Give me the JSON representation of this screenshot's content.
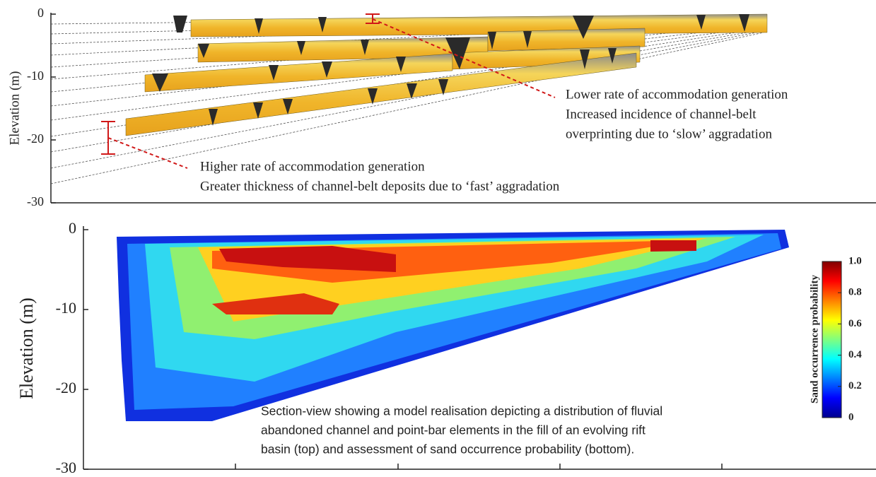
{
  "chart_data": [
    {
      "type": "section",
      "ylabel": "Elevation (m)",
      "ylim": [
        -30,
        0
      ],
      "yticks": [
        0,
        -10,
        -20,
        -30
      ],
      "annotations": [
        "Lower rate of accommodation generation",
        "Increased incidence of channel-belt",
        "overprinting due to ‘slow’ aggradation",
        "Higher rate of accommodation generation",
        "Greater thickness of channel-belt deposits due to ‘fast’ aggradation"
      ]
    },
    {
      "type": "heatmap",
      "ylabel": "Elevation (m)",
      "ylim": [
        -30,
        0
      ],
      "yticks": [
        0,
        -10,
        -20,
        -30
      ],
      "colorbar": {
        "label": "Sand occurrence probability",
        "lim": [
          0,
          1
        ],
        "ticks": [
          {
            "value": 1,
            "label": "1.0"
          },
          0.8,
          0.6,
          0.4,
          0.2,
          0
        ]
      }
    }
  ],
  "caption": [
    "Section-view showing a model realisation depicting a distribution of fluvial",
    "abandoned channel and point-bar elements in the fill of an evolving rift",
    "basin (top) and assessment of sand occurrence probability (bottom)."
  ]
}
